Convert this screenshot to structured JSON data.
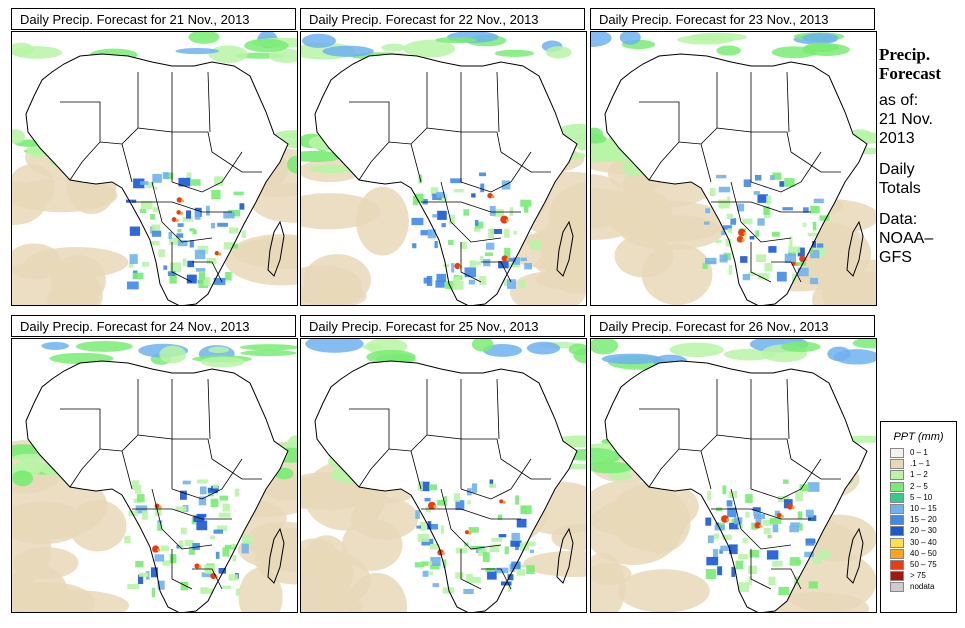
{
  "panels": [
    {
      "title": "Daily Precip. Forecast for  21 Nov., 2013"
    },
    {
      "title": "Daily Precip. Forecast for  22 Nov., 2013"
    },
    {
      "title": "Daily Precip. Forecast for  23 Nov., 2013"
    },
    {
      "title": "Daily Precip. Forecast for  24 Nov., 2013"
    },
    {
      "title": "Daily Precip. Forecast for  25 Nov., 2013"
    },
    {
      "title": "Daily Precip. Forecast for  26 Nov., 2013"
    }
  ],
  "side": {
    "title_line1": "Precip.",
    "title_line2": "Forecast",
    "asof_line1": "as of:",
    "asof_line2": "21 Nov.",
    "asof_line3": "2013",
    "daily_line1": "Daily",
    "daily_line2": "Totals",
    "data_line1": "Data:",
    "data_line2": "NOAA–",
    "data_line3": "GFS"
  },
  "legend": {
    "title": "PPT (mm)",
    "items": [
      {
        "label": "0 – 1",
        "color": "#f3f2ec"
      },
      {
        "label": ".1 – 1",
        "color": "#e8d8b8"
      },
      {
        "label": "1 – 2",
        "color": "#b8f5a6"
      },
      {
        "label": "2 – 5",
        "color": "#78ec72"
      },
      {
        "label": "5 – 10",
        "color": "#39c98e"
      },
      {
        "label": "10 – 15",
        "color": "#6fb2ee"
      },
      {
        "label": "15 – 20",
        "color": "#3f8ae8"
      },
      {
        "label": "20 – 30",
        "color": "#1858d4"
      },
      {
        "label": "30 – 40",
        "color": "#ffe04a"
      },
      {
        "label": "40 – 50",
        "color": "#ffa21c"
      },
      {
        "label": "50 – 75",
        "color": "#ee3a12"
      },
      {
        "label": "> 75",
        "color": "#a4160e"
      },
      {
        "label": "nodata",
        "color": "#cccccc"
      }
    ]
  }
}
